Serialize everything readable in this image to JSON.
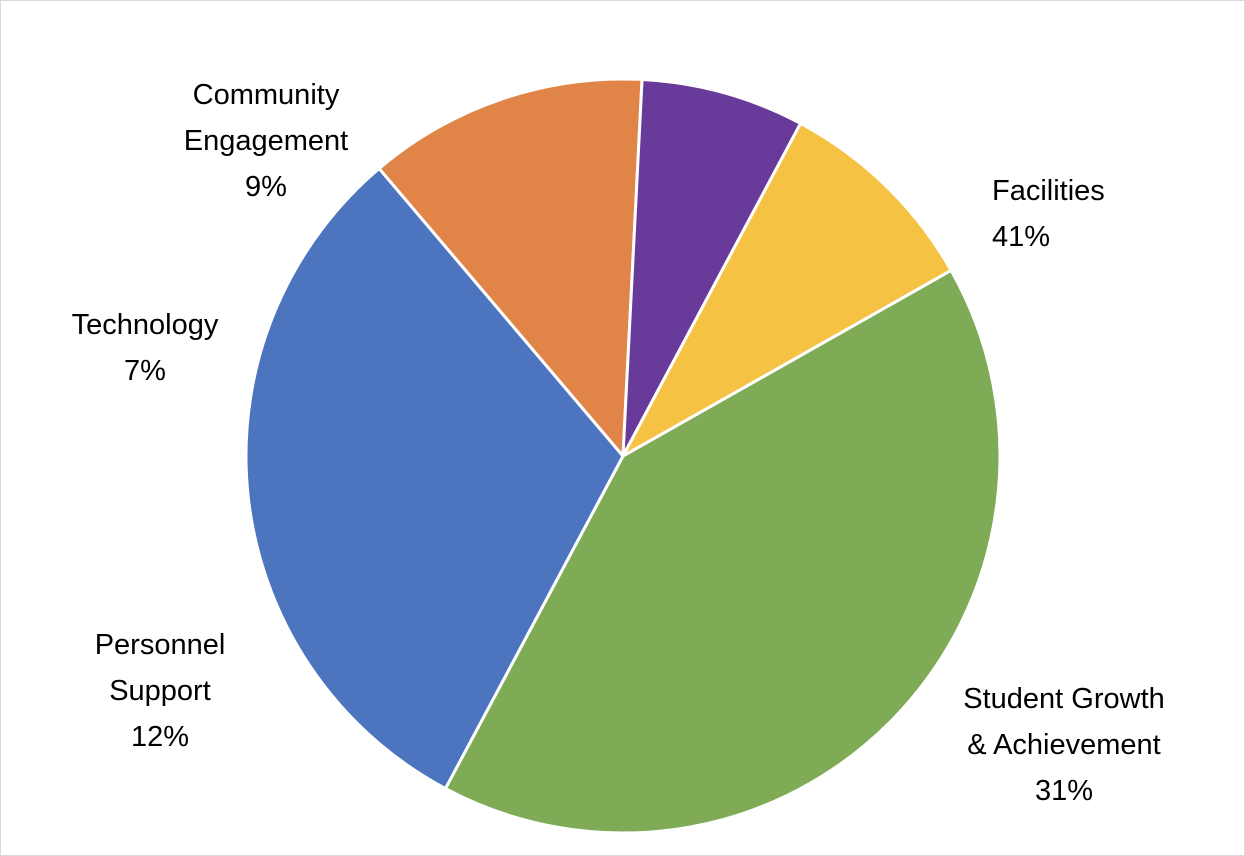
{
  "chart_data": {
    "type": "pie",
    "title": "",
    "start_angle_deg": 60.5,
    "direction": "clockwise",
    "slices": [
      {
        "name": "Facilities",
        "label_lines": [
          "Facilities"
        ],
        "value_label": "41%",
        "value": 41,
        "color": "#7FAB56",
        "label_anchor": "start"
      },
      {
        "name": "Student Growth & Achievement",
        "label_lines": [
          "Student Growth",
          "& Achievement"
        ],
        "value_label": "31%",
        "value": 31,
        "color": "#4C74BF",
        "label_anchor": "middle"
      },
      {
        "name": "Personnel Support",
        "label_lines": [
          "Personnel",
          "Support"
        ],
        "value_label": "12%",
        "value": 12,
        "color": "#E08547",
        "label_anchor": "middle"
      },
      {
        "name": "Technology",
        "label_lines": [
          "Technology"
        ],
        "value_label": "7%",
        "value": 7,
        "color": "#683A9A",
        "label_anchor": "middle"
      },
      {
        "name": "Community Engagement",
        "label_lines": [
          "Community",
          "Engagement"
        ],
        "value_label": "9%",
        "value": 9,
        "color": "#F6C244",
        "label_anchor": "middle"
      }
    ]
  }
}
